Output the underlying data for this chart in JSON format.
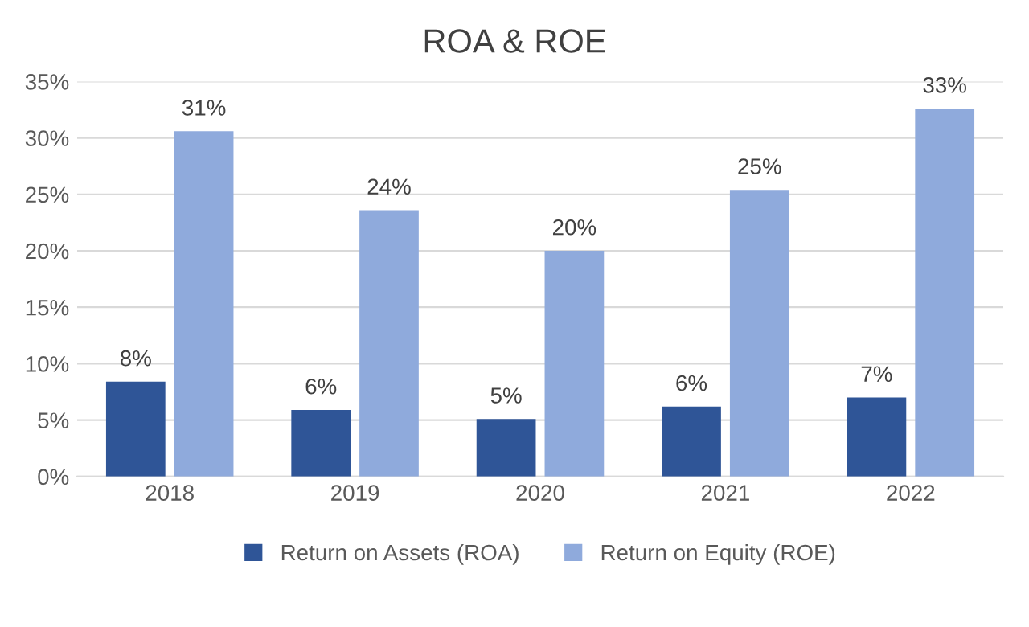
{
  "chart_data": {
    "type": "bar",
    "title": "ROA & ROE",
    "categories": [
      "2018",
      "2019",
      "2020",
      "2021",
      "2022"
    ],
    "series": [
      {
        "name": "Return on Assets (ROA)",
        "color": "#2f5597",
        "values": [
          8.4,
          5.9,
          5.1,
          6.2,
          7.0
        ],
        "value_labels": [
          "8%",
          "6%",
          "5%",
          "6%",
          "7%"
        ]
      },
      {
        "name": "Return on Equity (ROE)",
        "color": "#8faadc",
        "values": [
          30.6,
          23.6,
          20.0,
          25.4,
          32.6
        ],
        "value_labels": [
          "31%",
          "24%",
          "20%",
          "25%",
          "33%"
        ]
      }
    ],
    "ylim": [
      0,
      35
    ],
    "yticks": [
      {
        "value": 0,
        "label": "0%"
      },
      {
        "value": 5,
        "label": "5%"
      },
      {
        "value": 10,
        "label": "10%"
      },
      {
        "value": 15,
        "label": "15%"
      },
      {
        "value": 20,
        "label": "20%"
      },
      {
        "value": 25,
        "label": "25%"
      },
      {
        "value": 30,
        "label": "30%"
      },
      {
        "value": 35,
        "label": "35%"
      }
    ],
    "grid": "y",
    "legend": "bottom"
  }
}
